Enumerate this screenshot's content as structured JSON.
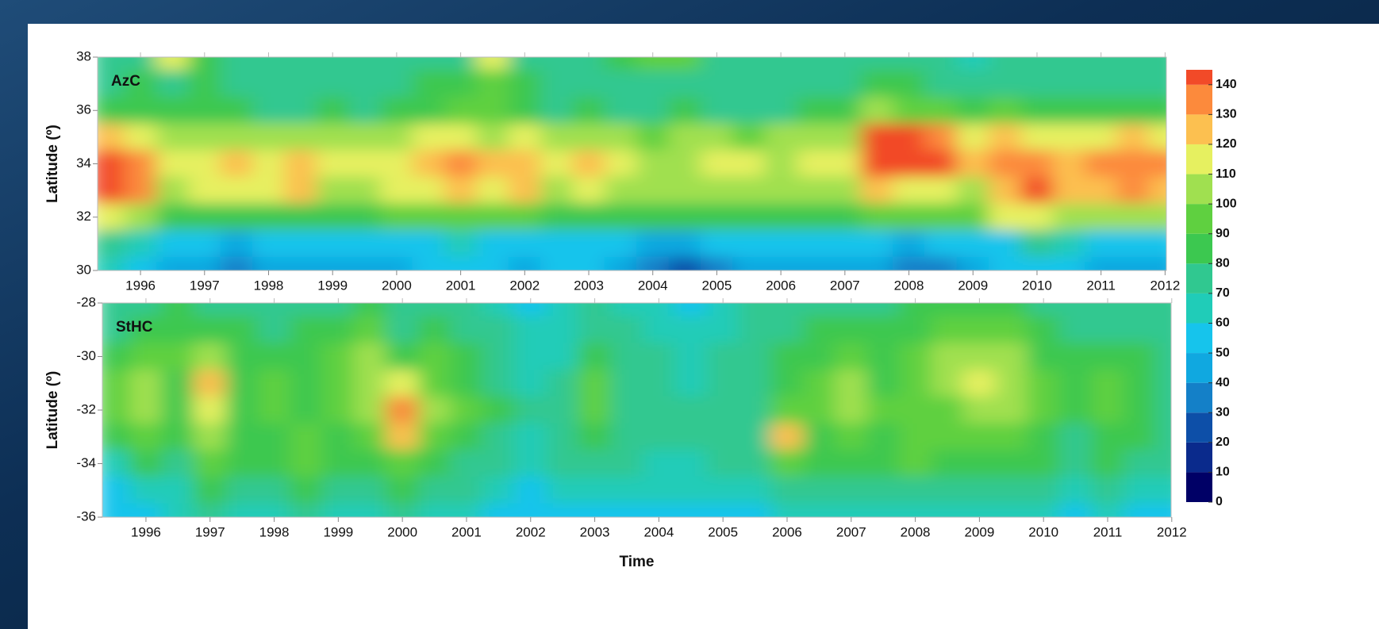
{
  "chart_data": [
    {
      "type": "heatmap",
      "label": "AzC",
      "ylabel": "Latitude (º)",
      "x": [
        1995.5,
        1996,
        1996.5,
        1997,
        1997.5,
        1998,
        1998.5,
        1999,
        1999.5,
        2000,
        2000.5,
        2001,
        2001.5,
        2002,
        2002.5,
        2003,
        2003.5,
        2004,
        2004.5,
        2005,
        2005.5,
        2006,
        2006.5,
        2007,
        2007.5,
        2008,
        2008.5,
        2009,
        2009.5,
        2010,
        2010.5,
        2011,
        2011.5,
        2012
      ],
      "y": [
        38,
        37,
        36,
        35,
        34,
        33,
        32,
        31,
        30
      ],
      "z": [
        [
          72,
          75,
          115,
          80,
          72,
          70,
          72,
          70,
          72,
          75,
          72,
          78,
          110,
          78,
          72,
          72,
          85,
          90,
          95,
          72,
          70,
          72,
          70,
          72,
          75,
          75,
          72,
          65,
          70,
          70,
          70,
          72,
          75,
          72
        ],
        [
          75,
          80,
          78,
          80,
          78,
          75,
          75,
          78,
          75,
          78,
          80,
          82,
          95,
          82,
          75,
          78,
          78,
          76,
          78,
          72,
          70,
          75,
          75,
          78,
          80,
          80,
          78,
          72,
          78,
          75,
          72,
          75,
          75,
          72
        ],
        [
          85,
          82,
          80,
          85,
          80,
          78,
          75,
          80,
          78,
          82,
          85,
          90,
          95,
          88,
          78,
          80,
          78,
          75,
          80,
          75,
          72,
          78,
          80,
          85,
          100,
          98,
          95,
          85,
          90,
          82,
          80,
          85,
          85,
          82
        ],
        [
          125,
          110,
          100,
          105,
          105,
          100,
          100,
          100,
          100,
          105,
          112,
          110,
          108,
          115,
          100,
          105,
          102,
          98,
          100,
          100,
          98,
          100,
          102,
          105,
          142,
          140,
          138,
          112,
          120,
          118,
          112,
          118,
          120,
          115
        ],
        [
          140,
          135,
          110,
          115,
          120,
          115,
          125,
          112,
          110,
          118,
          128,
          135,
          120,
          128,
          112,
          125,
          118,
          105,
          108,
          112,
          110,
          108,
          112,
          110,
          145,
          142,
          140,
          120,
          130,
          138,
          128,
          135,
          135,
          132
        ],
        [
          140,
          130,
          105,
          112,
          115,
          110,
          120,
          108,
          105,
          110,
          115,
          125,
          110,
          120,
          105,
          115,
          108,
          100,
          102,
          105,
          104,
          100,
          105,
          102,
          125,
          118,
          115,
          108,
          125,
          140,
          125,
          128,
          130,
          128
        ],
        [
          110,
          100,
          85,
          85,
          88,
          85,
          88,
          85,
          85,
          90,
          92,
          95,
          90,
          92,
          85,
          88,
          85,
          80,
          82,
          82,
          80,
          82,
          82,
          85,
          95,
          92,
          90,
          92,
          110,
          115,
          105,
          100,
          102,
          100
        ],
        [
          75,
          60,
          55,
          50,
          48,
          52,
          50,
          55,
          52,
          55,
          55,
          60,
          58,
          55,
          55,
          58,
          55,
          48,
          45,
          50,
          50,
          55,
          55,
          50,
          50,
          48,
          50,
          55,
          55,
          70,
          60,
          55,
          55,
          55
        ],
        [
          60,
          55,
          45,
          40,
          35,
          42,
          45,
          48,
          45,
          48,
          50,
          55,
          50,
          48,
          50,
          52,
          45,
          32,
          28,
          35,
          40,
          48,
          48,
          42,
          40,
          35,
          38,
          48,
          50,
          55,
          50,
          48,
          45,
          45
        ]
      ],
      "xlim": [
        1995.33,
        2012.02
      ],
      "ylim": [
        30,
        38
      ],
      "xticks": [
        1996,
        1997,
        1998,
        1999,
        2000,
        2001,
        2002,
        2003,
        2004,
        2005,
        2006,
        2007,
        2008,
        2009,
        2010,
        2011,
        2012
      ],
      "yticks": [
        30,
        32,
        34,
        36,
        38
      ]
    },
    {
      "type": "heatmap",
      "label": "StHC",
      "ylabel": "Latitude (º)",
      "xlabel": "Time",
      "x": [
        1995.5,
        1996,
        1996.5,
        1997,
        1997.5,
        1998,
        1998.5,
        1999,
        1999.5,
        2000,
        2000.5,
        2001,
        2001.5,
        2002,
        2002.5,
        2003,
        2003.5,
        2004,
        2004.5,
        2005,
        2005.5,
        2006,
        2006.5,
        2007,
        2007.5,
        2008,
        2008.5,
        2009,
        2009.5,
        2010,
        2010.5,
        2011,
        2011.5,
        2012
      ],
      "y": [
        -28,
        -29,
        -30,
        -31,
        -32,
        -33,
        -34,
        -35,
        -36
      ],
      "z": [
        [
          75,
          78,
          80,
          78,
          75,
          70,
          72,
          75,
          80,
          72,
          75,
          70,
          65,
          55,
          60,
          70,
          68,
          60,
          50,
          65,
          70,
          72,
          75,
          78,
          75,
          80,
          85,
          80,
          82,
          72,
          70,
          72,
          70,
          70
        ],
        [
          78,
          82,
          85,
          85,
          80,
          78,
          80,
          85,
          90,
          78,
          80,
          75,
          70,
          60,
          62,
          72,
          70,
          65,
          62,
          68,
          72,
          75,
          85,
          88,
          80,
          85,
          90,
          92,
          90,
          80,
          75,
          75,
          72,
          72
        ],
        [
          85,
          95,
          90,
          100,
          85,
          85,
          88,
          92,
          100,
          85,
          90,
          80,
          75,
          65,
          68,
          85,
          75,
          70,
          65,
          70,
          75,
          80,
          88,
          98,
          85,
          90,
          100,
          105,
          100,
          88,
          80,
          85,
          80,
          75
        ],
        [
          90,
          100,
          85,
          120,
          85,
          90,
          88,
          95,
          105,
          110,
          95,
          85,
          78,
          68,
          70,
          95,
          78,
          72,
          68,
          72,
          75,
          85,
          90,
          100,
          88,
          95,
          100,
          110,
          100,
          95,
          85,
          92,
          85,
          78
        ],
        [
          95,
          105,
          85,
          110,
          85,
          90,
          85,
          92,
          105,
          130,
          100,
          90,
          80,
          70,
          72,
          90,
          78,
          72,
          70,
          72,
          75,
          95,
          90,
          108,
          90,
          95,
          95,
          105,
          100,
          90,
          80,
          95,
          85,
          78
        ],
        [
          85,
          95,
          80,
          100,
          85,
          85,
          90,
          88,
          95,
          125,
          92,
          85,
          78,
          68,
          70,
          85,
          75,
          70,
          70,
          70,
          72,
          122,
          85,
          95,
          85,
          95,
          90,
          95,
          90,
          85,
          78,
          88,
          80,
          75
        ],
        [
          65,
          80,
          75,
          90,
          80,
          85,
          90,
          85,
          85,
          95,
          85,
          78,
          72,
          68,
          70,
          78,
          72,
          68,
          68,
          70,
          72,
          95,
          80,
          85,
          82,
          90,
          85,
          85,
          85,
          80,
          72,
          80,
          75,
          72
        ],
        [
          55,
          65,
          68,
          82,
          72,
          75,
          80,
          75,
          75,
          80,
          75,
          70,
          62,
          58,
          60,
          65,
          62,
          62,
          60,
          62,
          62,
          75,
          70,
          72,
          70,
          75,
          75,
          72,
          72,
          70,
          62,
          70,
          65,
          62
        ],
        [
          50,
          58,
          60,
          75,
          65,
          65,
          70,
          68,
          65,
          70,
          68,
          60,
          55,
          50,
          55,
          58,
          55,
          55,
          55,
          55,
          55,
          68,
          62,
          65,
          62,
          68,
          68,
          65,
          65,
          62,
          55,
          60,
          55,
          55
        ]
      ],
      "xlim": [
        1995.32,
        2011.99
      ],
      "ylim": [
        -36,
        -28
      ],
      "xticks": [
        1996,
        1997,
        1998,
        1999,
        2000,
        2001,
        2002,
        2003,
        2004,
        2005,
        2006,
        2007,
        2008,
        2009,
        2010,
        2011,
        2012
      ],
      "yticks": [
        -36,
        -34,
        -32,
        -30,
        -28
      ]
    }
  ],
  "colorbar": {
    "clim": [
      0,
      145
    ],
    "ticks": [
      0,
      10,
      20,
      30,
      40,
      50,
      60,
      70,
      80,
      90,
      100,
      110,
      120,
      130,
      140
    ],
    "colors": [
      "#000066",
      "#0a2a8c",
      "#0d4fa8",
      "#1480c8",
      "#10a8e0",
      "#16c4ec",
      "#20ccb8",
      "#30c890",
      "#3cc850",
      "#5fd040",
      "#a0e050",
      "#e6f060",
      "#fcc050",
      "#fc8a3c",
      "#f24a28"
    ]
  }
}
